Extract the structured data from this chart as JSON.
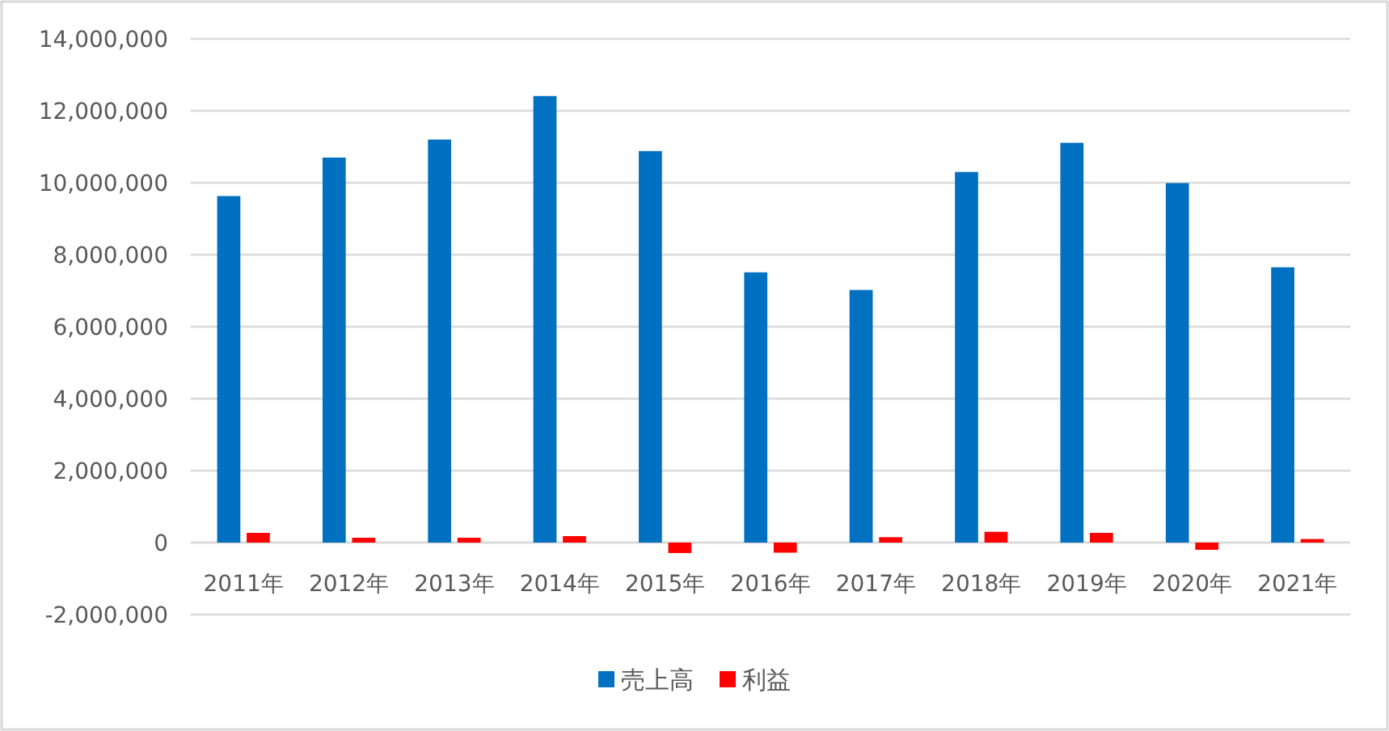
{
  "chart_data": {
    "type": "bar",
    "categories": [
      "2011年",
      "2012年",
      "2013年",
      "2014年",
      "2015年",
      "2016年",
      "2017年",
      "2018年",
      "2019年",
      "2020年",
      "2021年"
    ],
    "series": [
      {
        "name": "売上高",
        "color": "#0070c0",
        "values": [
          9630000,
          10700000,
          11200000,
          12410000,
          10880000,
          7510000,
          7020000,
          10300000,
          11110000,
          9990000,
          7650000
        ]
      },
      {
        "name": "利益",
        "color": "#ff0000",
        "values": [
          270000,
          135000,
          135000,
          180000,
          -290000,
          -280000,
          150000,
          300000,
          270000,
          -200000,
          100000
        ]
      }
    ],
    "ylim": [
      -2000000,
      14000000
    ],
    "yticks": [
      {
        "value": -2000000,
        "label": "-2,000,000"
      },
      {
        "value": 0,
        "label": "0"
      },
      {
        "value": 2000000,
        "label": "2,000,000"
      },
      {
        "value": 4000000,
        "label": "4,000,000"
      },
      {
        "value": 6000000,
        "label": "6,000,000"
      },
      {
        "value": 8000000,
        "label": "8,000,000"
      },
      {
        "value": 10000000,
        "label": "10,000,000"
      },
      {
        "value": 12000000,
        "label": "12,000,000"
      },
      {
        "value": 14000000,
        "label": "14,000,000"
      }
    ],
    "grid": "y",
    "legend": "bottom"
  }
}
